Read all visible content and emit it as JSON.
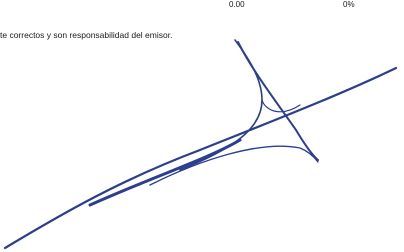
{
  "header": {
    "cells": [
      "0.00",
      "0%"
    ]
  },
  "body": {
    "text": "te correctos y son responsabilidad del emisor."
  }
}
